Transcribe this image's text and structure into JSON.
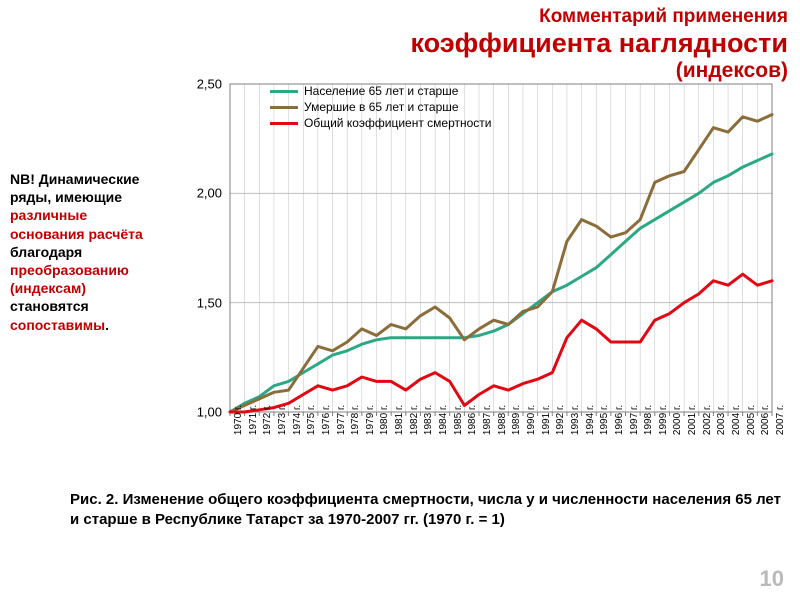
{
  "title": {
    "line1": "Комментарий применения",
    "line2": "коэффициента наглядности",
    "line3": "(индексов)",
    "color": "#c00000",
    "line1_fontsize": 19,
    "line2_fontsize": 27,
    "line3_fontsize": 21
  },
  "note": {
    "parts": [
      {
        "text": "NB! Динамические ряды, имеющие ",
        "color": "#000000"
      },
      {
        "text": "различные основания расчёта",
        "color": "#c00000"
      },
      {
        "text": " благодаря ",
        "color": "#000000"
      },
      {
        "text": "преобразованию (индексам)",
        "color": "#c00000"
      },
      {
        "text": " становятся ",
        "color": "#000000"
      },
      {
        "text": "сопоставимы",
        "color": "#c00000"
      },
      {
        "text": ".",
        "color": "#000000"
      }
    ],
    "fontsize": 14
  },
  "caption": {
    "text": "Рис. 2. Изменение общего коэффициента смертности, числа у и численности населения 65 лет и старше в Республике Татарст за 1970-2007 гг. (1970 г. = 1)",
    "fontsize": 15
  },
  "pagenum": "10",
  "chart": {
    "type": "line",
    "background_color": "#ffffff",
    "plot_border_color": "#7f7f7f",
    "grid_color": "#bfbfbf",
    "ylim": [
      1.0,
      2.5
    ],
    "yticks": [
      1.0,
      1.5,
      2.0,
      2.5
    ],
    "ytick_labels": [
      "1,00",
      "1,50",
      "2,00",
      "2,50"
    ],
    "xlabels": [
      "1970 г.",
      "1971 г.",
      "1972 г.",
      "1973 г.",
      "1974 г.",
      "1975 г.",
      "1976 г.",
      "1977 г.",
      "1978 г.",
      "1979 г.",
      "1980 г.",
      "1981 г.",
      "1982 г.",
      "1983 г.",
      "1984 г.",
      "1985 г.",
      "1986 г.",
      "1987 г.",
      "1988 г.",
      "1989 г.",
      "1990 г.",
      "1991 г.",
      "1992 г.",
      "1993 г.",
      "1994 г.",
      "1995 г.",
      "1996 г.",
      "1997 г.",
      "1998 г.",
      "1999 г.",
      "2000 г.",
      "2001 г.",
      "2002 г.",
      "2003 г.",
      "2004 г.",
      "2005 г.",
      "2006 г.",
      "2007 г."
    ],
    "tick_fontsize": 10,
    "ylabel_fontsize": 13,
    "line_width": 3,
    "series": [
      {
        "name": "Население 65 лет и старше",
        "color": "#2ca884",
        "values": [
          1.0,
          1.04,
          1.07,
          1.12,
          1.14,
          1.18,
          1.22,
          1.26,
          1.28,
          1.31,
          1.33,
          1.34,
          1.34,
          1.34,
          1.34,
          1.34,
          1.34,
          1.35,
          1.37,
          1.4,
          1.45,
          1.5,
          1.55,
          1.58,
          1.62,
          1.66,
          1.72,
          1.78,
          1.84,
          1.88,
          1.92,
          1.96,
          2.0,
          2.05,
          2.08,
          2.12,
          2.15,
          2.18
        ]
      },
      {
        "name": "Умершие в 65 лет и старше",
        "color": "#8a6d3b",
        "values": [
          1.0,
          1.03,
          1.06,
          1.09,
          1.1,
          1.2,
          1.3,
          1.28,
          1.32,
          1.38,
          1.35,
          1.4,
          1.38,
          1.44,
          1.48,
          1.43,
          1.33,
          1.38,
          1.42,
          1.4,
          1.46,
          1.48,
          1.55,
          1.78,
          1.88,
          1.85,
          1.8,
          1.82,
          1.88,
          2.05,
          2.08,
          2.1,
          2.2,
          2.3,
          2.28,
          2.35,
          2.33,
          2.36
        ]
      },
      {
        "name": "Общий коэффициент смертности",
        "color": "#e30613",
        "values": [
          1.0,
          1.0,
          1.01,
          1.02,
          1.04,
          1.08,
          1.12,
          1.1,
          1.12,
          1.16,
          1.14,
          1.14,
          1.1,
          1.15,
          1.18,
          1.14,
          1.03,
          1.08,
          1.12,
          1.1,
          1.13,
          1.15,
          1.18,
          1.34,
          1.42,
          1.38,
          1.32,
          1.32,
          1.32,
          1.42,
          1.45,
          1.5,
          1.54,
          1.6,
          1.58,
          1.63,
          1.58,
          1.6
        ]
      }
    ],
    "legend_position": "top-inside",
    "legend_fontsize": 12
  }
}
